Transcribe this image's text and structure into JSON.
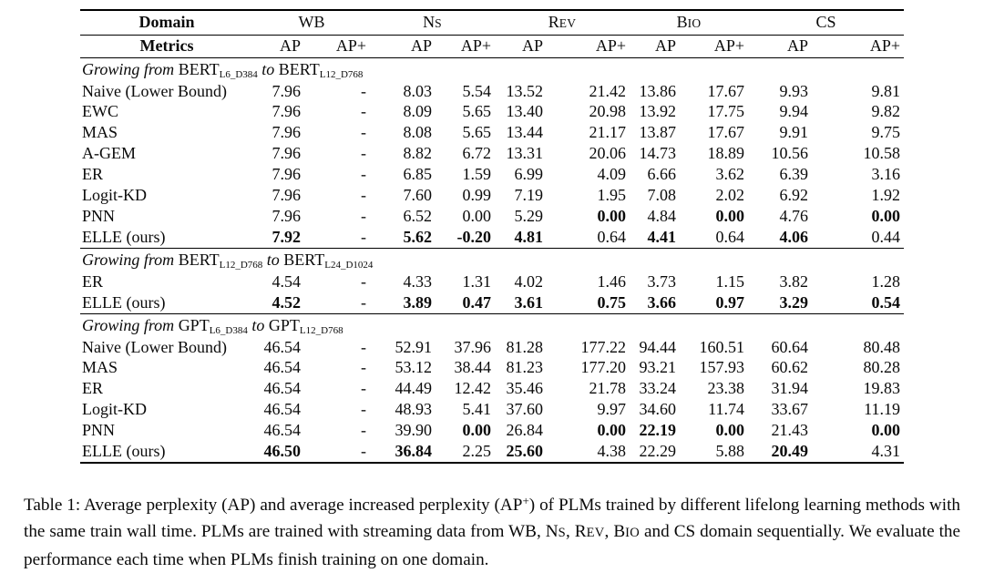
{
  "table": {
    "header": {
      "domain_label": "Domain",
      "metrics_label": "Metrics",
      "groups": [
        {
          "name": "wb",
          "lead": "WB",
          "small": ""
        },
        {
          "name": "ns",
          "lead": "N",
          "small": "S"
        },
        {
          "name": "rev",
          "lead": "R",
          "small": "EV"
        },
        {
          "name": "bio",
          "lead": "B",
          "small": "IO"
        },
        {
          "name": "cs",
          "lead": "CS",
          "small": ""
        }
      ],
      "metric_cols": [
        "AP",
        "AP+",
        "AP",
        "AP+",
        "AP",
        "AP+",
        "AP",
        "AP+",
        "AP",
        "AP+"
      ]
    },
    "sections": [
      {
        "title": {
          "prefix": "Growing from ",
          "model1": "BERT",
          "sub1": "L6_D384",
          "mid": " to ",
          "model2": "BERT",
          "sub2": "L12_D768"
        },
        "rows": [
          {
            "method": "Naive (Lower Bound)",
            "values": [
              "7.96",
              "-",
              "8.03",
              "5.54",
              "13.52",
              "21.42",
              "13.86",
              "17.67",
              "9.93",
              "9.81"
            ],
            "bold": []
          },
          {
            "method": "EWC",
            "values": [
              "7.96",
              "-",
              "8.09",
              "5.65",
              "13.40",
              "20.98",
              "13.92",
              "17.75",
              "9.94",
              "9.82"
            ],
            "bold": []
          },
          {
            "method": "MAS",
            "values": [
              "7.96",
              "-",
              "8.08",
              "5.65",
              "13.44",
              "21.17",
              "13.87",
              "17.67",
              "9.91",
              "9.75"
            ],
            "bold": []
          },
          {
            "method": "A-GEM",
            "values": [
              "7.96",
              "-",
              "8.82",
              "6.72",
              "13.31",
              "20.06",
              "14.73",
              "18.89",
              "10.56",
              "10.58"
            ],
            "bold": []
          },
          {
            "method": "ER",
            "values": [
              "7.96",
              "-",
              "6.85",
              "1.59",
              "6.99",
              "4.09",
              "6.66",
              "3.62",
              "6.39",
              "3.16"
            ],
            "bold": []
          },
          {
            "method": "Logit-KD",
            "values": [
              "7.96",
              "-",
              "7.60",
              "0.99",
              "7.19",
              "1.95",
              "7.08",
              "2.02",
              "6.92",
              "1.92"
            ],
            "bold": []
          },
          {
            "method": "PNN",
            "values": [
              "7.96",
              "-",
              "6.52",
              "0.00",
              "5.29",
              "0.00",
              "4.84",
              "0.00",
              "4.76",
              "0.00"
            ],
            "bold": [
              5,
              7,
              9
            ]
          },
          {
            "method": "ELLE (ours)",
            "values": [
              "7.92",
              "-",
              "5.62",
              "-0.20",
              "4.81",
              "0.64",
              "4.41",
              "0.64",
              "4.06",
              "0.44"
            ],
            "bold": [
              0,
              2,
              3,
              4,
              6,
              8
            ]
          }
        ]
      },
      {
        "title": {
          "prefix": "Growing from ",
          "model1": "BERT",
          "sub1": "L12_D768",
          "mid": " to ",
          "model2": "BERT",
          "sub2": "L24_D1024"
        },
        "rows": [
          {
            "method": "ER",
            "values": [
              "4.54",
              "-",
              "4.33",
              "1.31",
              "4.02",
              "1.46",
              "3.73",
              "1.15",
              "3.82",
              "1.28"
            ],
            "bold": []
          },
          {
            "method": "ELLE (ours)",
            "values": [
              "4.52",
              "-",
              "3.89",
              "0.47",
              "3.61",
              "0.75",
              "3.66",
              "0.97",
              "3.29",
              "0.54"
            ],
            "bold": [
              0,
              2,
              3,
              4,
              5,
              6,
              7,
              8,
              9
            ]
          }
        ]
      },
      {
        "title": {
          "prefix": "Growing from ",
          "model1": "GPT",
          "sub1": "L6_D384",
          "mid": " to ",
          "model2": "GPT",
          "sub2": "L12_D768"
        },
        "rows": [
          {
            "method": "Naive (Lower Bound)",
            "values": [
              "46.54",
              "-",
              "52.91",
              "37.96",
              "81.28",
              "177.22",
              "94.44",
              "160.51",
              "60.64",
              "80.48"
            ],
            "bold": []
          },
          {
            "method": "MAS",
            "values": [
              "46.54",
              "-",
              "53.12",
              "38.44",
              "81.23",
              "177.20",
              "93.21",
              "157.93",
              "60.62",
              "80.28"
            ],
            "bold": []
          },
          {
            "method": "ER",
            "values": [
              "46.54",
              "-",
              "44.49",
              "12.42",
              "35.46",
              "21.78",
              "33.24",
              "23.38",
              "31.94",
              "19.83"
            ],
            "bold": []
          },
          {
            "method": "Logit-KD",
            "values": [
              "46.54",
              "-",
              "48.93",
              "5.41",
              "37.60",
              "9.97",
              "34.60",
              "11.74",
              "33.67",
              "11.19"
            ],
            "bold": []
          },
          {
            "method": "PNN",
            "values": [
              "46.54",
              "-",
              "39.90",
              "0.00",
              "26.84",
              "0.00",
              "22.19",
              "0.00",
              "21.43",
              "0.00"
            ],
            "bold": [
              3,
              5,
              6,
              7,
              9
            ]
          },
          {
            "method": "ELLE (ours)",
            "values": [
              "46.50",
              "-",
              "36.84",
              "2.25",
              "25.60",
              "4.38",
              "22.29",
              "5.88",
              "20.49",
              "4.31"
            ],
            "bold": [
              0,
              2,
              4,
              8
            ]
          }
        ]
      }
    ]
  },
  "caption": {
    "segments": [
      {
        "type": "text",
        "text": "Table 1: Average perplexity (AP) and average increased perplexity (AP"
      },
      {
        "type": "sup",
        "text": "+"
      },
      {
        "type": "text",
        "text": ") of PLMs trained by different lifelong learning methods with the same train wall time. PLMs are trained with streaming data from WB, "
      },
      {
        "type": "sc",
        "lead": "N",
        "small": "S"
      },
      {
        "type": "text",
        "text": ", "
      },
      {
        "type": "sc",
        "lead": "R",
        "small": "EV"
      },
      {
        "type": "text",
        "text": ", "
      },
      {
        "type": "sc",
        "lead": "B",
        "small": "IO"
      },
      {
        "type": "text",
        "text": " and CS domain sequentially. We evaluate the performance each time when PLMs finish training on one domain."
      }
    ]
  }
}
